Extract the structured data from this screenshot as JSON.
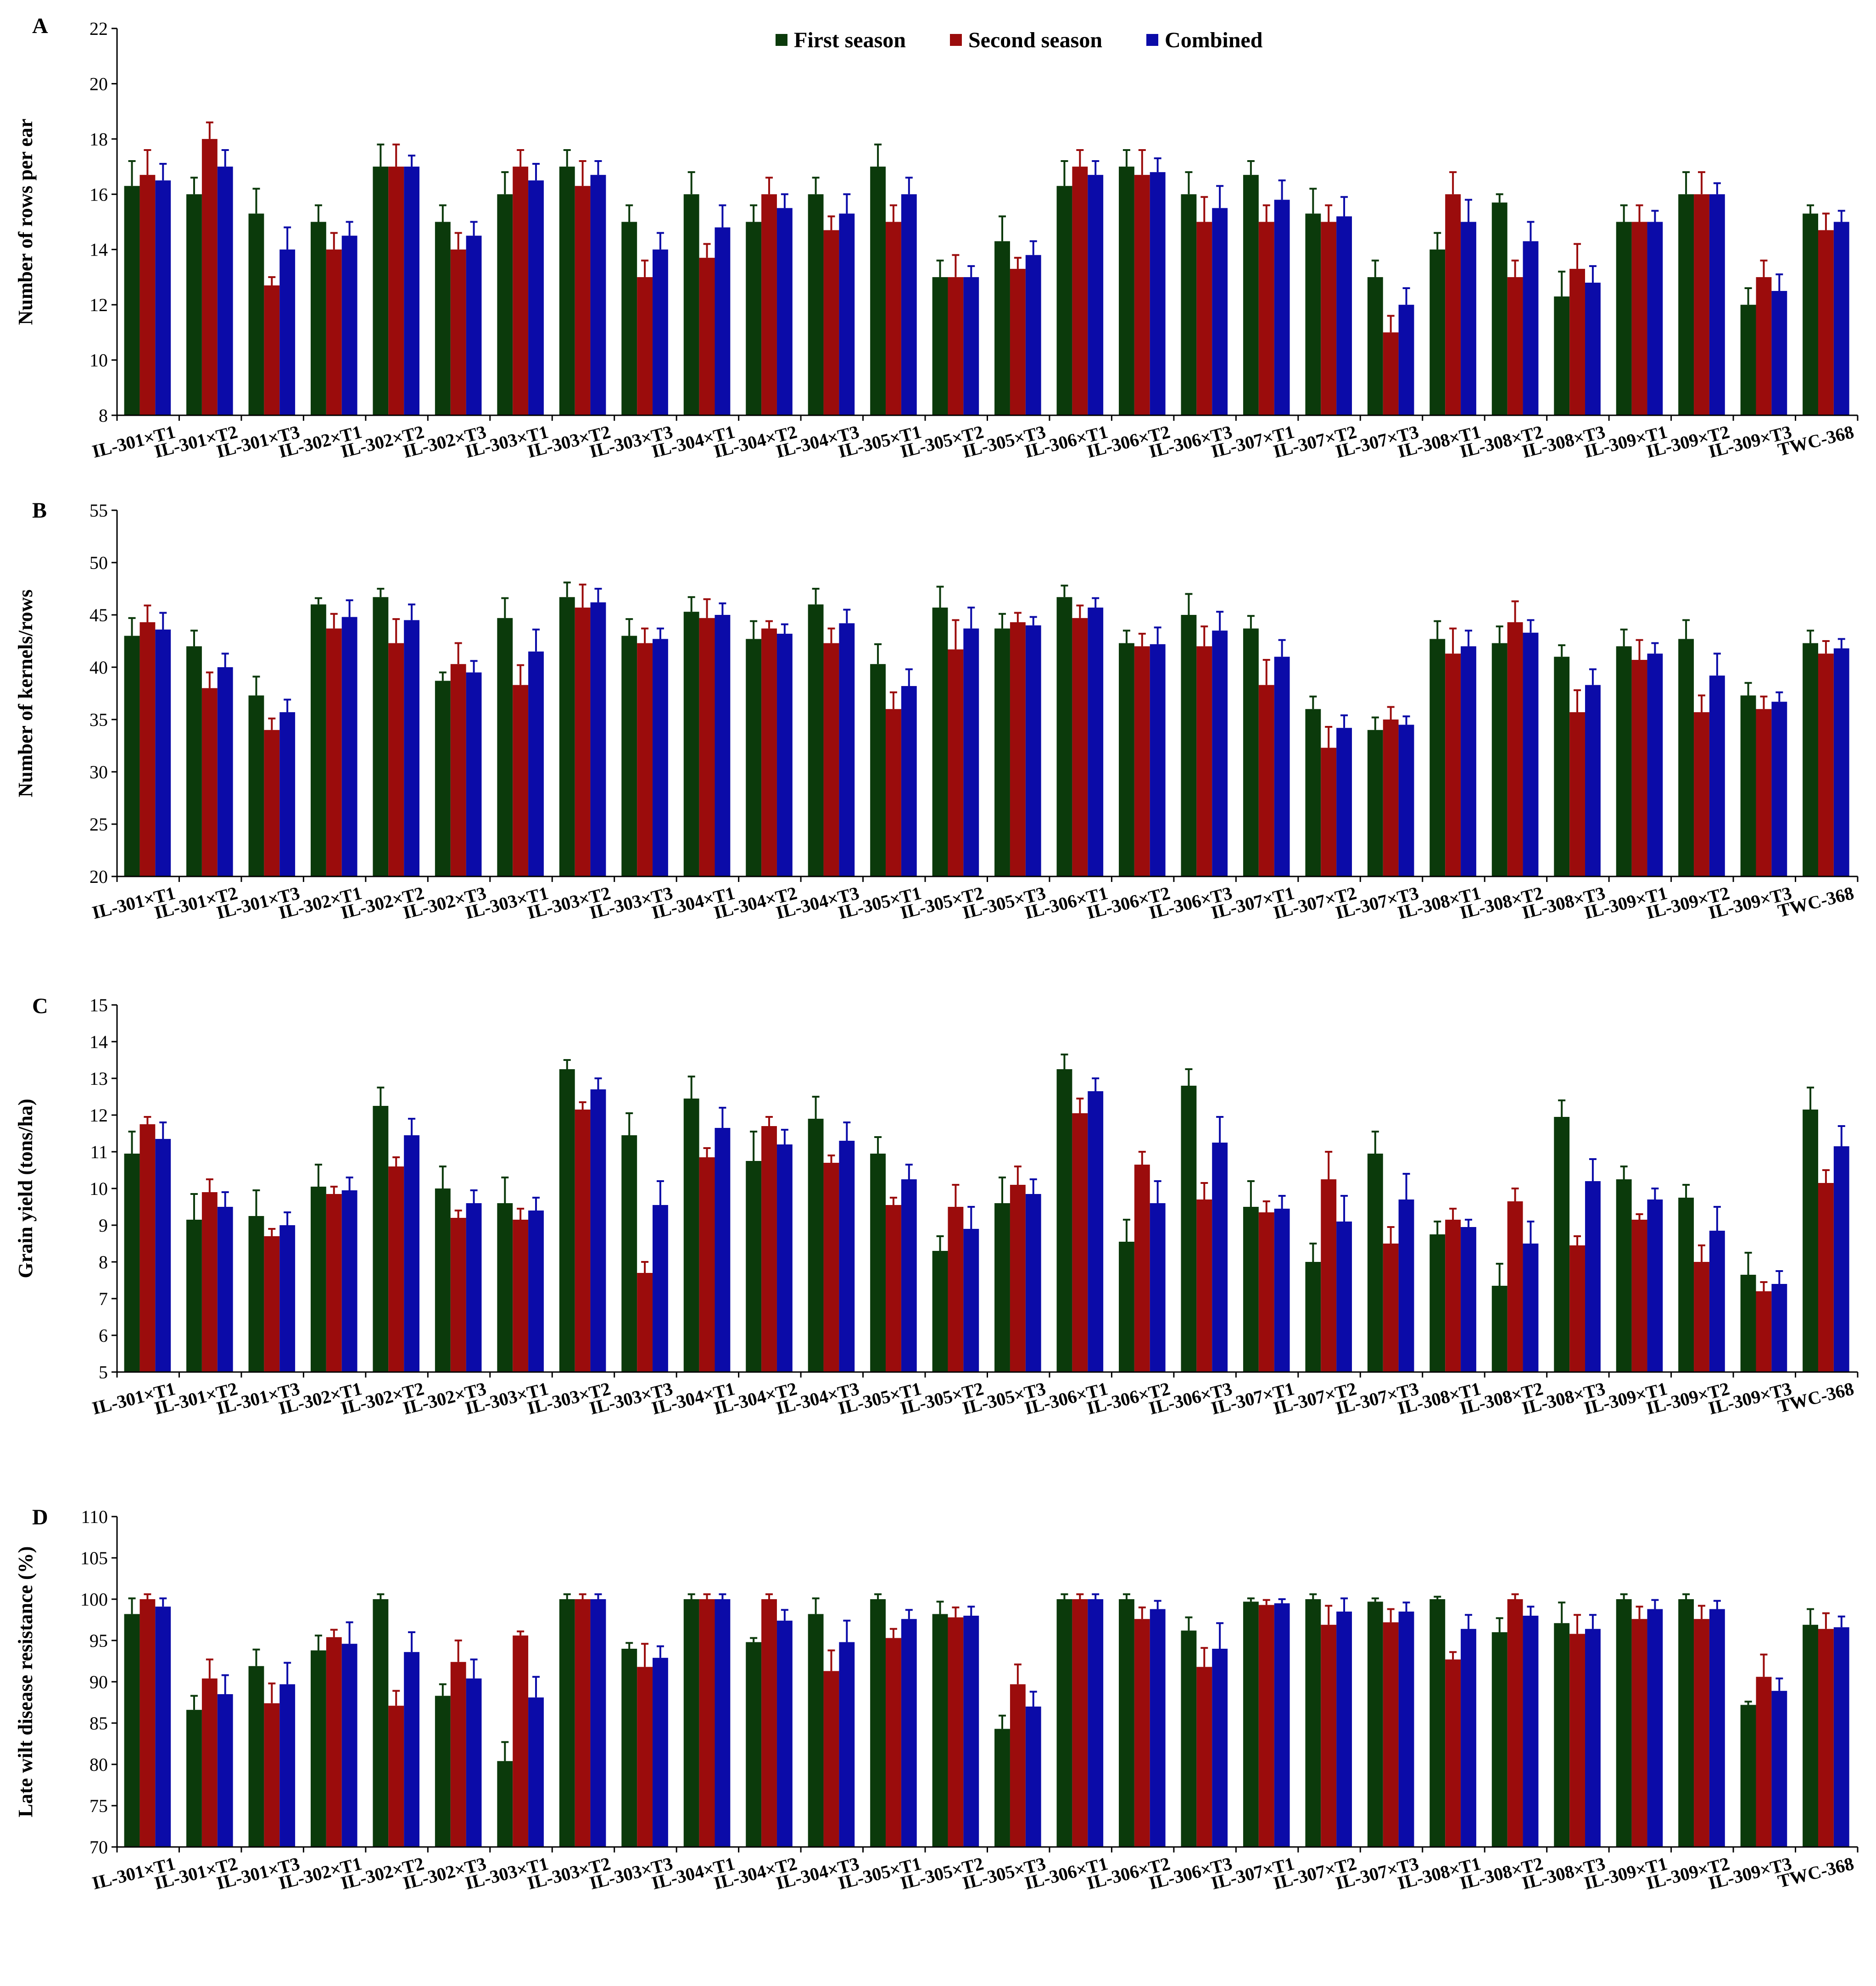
{
  "legend": [
    "First season",
    "Second season",
    "Combined"
  ],
  "colors": {
    "First season": "#0b3a0b",
    "Second season": "#9b0c0c",
    "Combined": "#0b0ba8"
  },
  "chart_data": [
    {
      "panel": "A",
      "type": "bar",
      "ylabel": "Number of rows per ear",
      "ylim": [
        8,
        22
      ],
      "yticks": [
        8,
        10,
        12,
        14,
        16,
        18,
        20,
        22
      ],
      "categories": [
        "IL-301×T1",
        "IL-301×T2",
        "IL-301×T3",
        "IL-302×T1",
        "IL-302×T2",
        "IL-302×T3",
        "IL-303×T1",
        "IL-303×T2",
        "IL-303×T3",
        "IL-304×T1",
        "IL-304×T2",
        "IL-304×T3",
        "IL-305×T1",
        "IL-305×T2",
        "IL-305×T3",
        "IL-306×T1",
        "IL-306×T2",
        "IL-306×T3",
        "IL-307×T1",
        "IL-307×T2",
        "IL-307×T3",
        "IL-308×T1",
        "IL-308×T2",
        "IL-308×T3",
        "IL-309×T1",
        "IL-309×T2",
        "IL-309×T3",
        "TWC-368"
      ],
      "series": [
        {
          "name": "First season",
          "values": [
            16.3,
            16.0,
            15.3,
            15.0,
            17.0,
            15.0,
            16.0,
            17.0,
            15.0,
            16.0,
            15.0,
            16.0,
            17.0,
            13.0,
            14.3,
            16.3,
            17.0,
            16.0,
            16.7,
            15.3,
            13.0,
            14.0,
            15.7,
            12.3,
            15.0,
            16.0,
            12.0,
            15.3
          ],
          "errors": [
            0.9,
            0.6,
            0.9,
            0.6,
            0.8,
            0.6,
            0.8,
            0.6,
            0.6,
            0.8,
            0.6,
            0.6,
            0.8,
            0.6,
            0.9,
            0.9,
            0.6,
            0.8,
            0.5,
            0.9,
            0.6,
            0.6,
            0.3,
            0.9,
            0.6,
            0.8,
            0.6,
            0.3
          ]
        },
        {
          "name": "Second season",
          "values": [
            16.7,
            18.0,
            12.7,
            14.0,
            17.0,
            14.0,
            17.0,
            16.3,
            13.0,
            13.7,
            16.0,
            14.7,
            15.0,
            13.0,
            13.3,
            17.0,
            16.7,
            15.0,
            15.0,
            15.0,
            11.0,
            16.0,
            13.0,
            13.3,
            15.0,
            16.0,
            13.0,
            14.7
          ],
          "errors": [
            0.9,
            0.6,
            0.3,
            0.6,
            0.8,
            0.6,
            0.6,
            0.9,
            0.6,
            0.5,
            0.6,
            0.5,
            0.6,
            0.8,
            0.4,
            0.6,
            0.9,
            0.9,
            0.6,
            0.6,
            0.6,
            0.8,
            0.6,
            0.9,
            0.6,
            0.8,
            0.6,
            0.6
          ]
        },
        {
          "name": "Combined",
          "values": [
            16.5,
            17.0,
            14.0,
            14.5,
            17.0,
            14.5,
            16.5,
            16.7,
            14.0,
            14.8,
            15.5,
            15.3,
            16.0,
            13.0,
            13.8,
            16.7,
            16.8,
            15.5,
            15.8,
            15.2,
            12.0,
            15.0,
            14.3,
            12.8,
            15.0,
            16.0,
            12.5,
            15.0
          ],
          "errors": [
            0.6,
            0.6,
            0.8,
            0.5,
            0.4,
            0.5,
            0.6,
            0.5,
            0.6,
            0.8,
            0.5,
            0.7,
            0.6,
            0.4,
            0.5,
            0.5,
            0.5,
            0.8,
            0.7,
            0.7,
            0.6,
            0.8,
            0.7,
            0.6,
            0.4,
            0.4,
            0.6,
            0.4
          ]
        }
      ]
    },
    {
      "panel": "B",
      "type": "bar",
      "ylabel": "Number of kernels/rows",
      "ylim": [
        20,
        55
      ],
      "yticks": [
        20,
        25,
        30,
        35,
        40,
        45,
        50,
        55
      ],
      "categories": [
        "IL-301×T1",
        "IL-301×T2",
        "IL-301×T3",
        "IL-302×T1",
        "IL-302×T2",
        "IL-302×T3",
        "IL-303×T1",
        "IL-303×T2",
        "IL-303×T3",
        "IL-304×T1",
        "IL-304×T2",
        "IL-304×T3",
        "IL-305×T1",
        "IL-305×T2",
        "IL-305×T3",
        "IL-306×T1",
        "IL-306×T2",
        "IL-306×T3",
        "IL-307×T1",
        "IL-307×T2",
        "IL-307×T3",
        "IL-308×T1",
        "IL-308×T2",
        "IL-308×T3",
        "IL-309×T1",
        "IL-309×T2",
        "IL-309×T3",
        "TWC-368"
      ],
      "series": [
        {
          "name": "First season",
          "values": [
            43.0,
            42.0,
            37.3,
            46.0,
            46.7,
            38.7,
            44.7,
            46.7,
            43.0,
            45.3,
            42.7,
            46.0,
            40.3,
            45.7,
            43.7,
            46.7,
            42.3,
            45.0,
            43.7,
            36.0,
            34.0,
            42.7,
            42.3,
            41.0,
            42.0,
            42.7,
            37.3,
            42.3
          ],
          "errors": [
            1.7,
            1.5,
            1.8,
            0.6,
            0.8,
            0.8,
            1.9,
            1.4,
            1.6,
            1.4,
            1.7,
            1.5,
            1.9,
            2.0,
            1.4,
            1.1,
            1.2,
            2.0,
            1.2,
            1.2,
            1.2,
            1.7,
            1.6,
            1.1,
            1.6,
            1.8,
            1.2,
            1.2
          ]
        },
        {
          "name": "Second season",
          "values": [
            44.3,
            38.0,
            34.0,
            43.7,
            42.3,
            40.3,
            38.3,
            45.7,
            42.3,
            44.7,
            43.7,
            42.3,
            36.0,
            41.7,
            44.3,
            44.7,
            42.0,
            42.0,
            38.3,
            32.3,
            35.0,
            41.3,
            44.3,
            35.7,
            40.7,
            35.7,
            36.0,
            41.3
          ],
          "errors": [
            1.6,
            1.5,
            1.1,
            1.4,
            2.3,
            2.0,
            1.9,
            2.2,
            1.4,
            1.8,
            0.7,
            1.4,
            1.6,
            2.8,
            0.9,
            1.2,
            1.2,
            1.9,
            2.4,
            2.0,
            1.2,
            2.4,
            2.0,
            2.1,
            1.9,
            1.6,
            1.2,
            1.2
          ]
        },
        {
          "name": "Combined",
          "values": [
            43.6,
            40.0,
            35.7,
            44.8,
            44.5,
            39.5,
            41.5,
            46.2,
            42.7,
            45.0,
            43.2,
            44.2,
            38.2,
            43.7,
            44.0,
            45.7,
            42.2,
            43.5,
            41.0,
            34.2,
            34.5,
            42.0,
            43.3,
            38.3,
            41.3,
            39.2,
            36.7,
            41.8
          ],
          "errors": [
            1.6,
            1.3,
            1.2,
            1.6,
            1.5,
            1.1,
            2.1,
            1.3,
            1.0,
            1.1,
            0.9,
            1.3,
            1.6,
            2.0,
            0.8,
            0.9,
            1.6,
            1.8,
            1.6,
            1.2,
            0.8,
            1.5,
            1.2,
            1.5,
            1.0,
            2.1,
            0.9,
            0.9
          ]
        }
      ]
    },
    {
      "panel": "C",
      "type": "bar",
      "ylabel": "Grain yield (tons/ha)",
      "ylim": [
        5,
        15
      ],
      "yticks": [
        5,
        6,
        7,
        8,
        9,
        10,
        11,
        12,
        13,
        14,
        15
      ],
      "categories": [
        "IL-301×T1",
        "IL-301×T2",
        "IL-301×T3",
        "IL-302×T1",
        "IL-302×T2",
        "IL-302×T3",
        "IL-303×T1",
        "IL-303×T2",
        "IL-303×T3",
        "IL-304×T1",
        "IL-304×T2",
        "IL-304×T3",
        "IL-305×T1",
        "IL-305×T2",
        "IL-305×T3",
        "IL-306×T1",
        "IL-306×T2",
        "IL-306×T3",
        "IL-307×T1",
        "IL-307×T2",
        "IL-307×T3",
        "IL-308×T1",
        "IL-308×T2",
        "IL-308×T3",
        "IL-309×T1",
        "IL-309×T2",
        "IL-309×T3",
        "TWC-368"
      ],
      "series": [
        {
          "name": "First season",
          "values": [
            10.95,
            9.15,
            9.25,
            10.05,
            12.25,
            10.0,
            9.6,
            13.25,
            11.45,
            12.45,
            10.75,
            11.9,
            10.95,
            8.3,
            9.6,
            13.25,
            8.55,
            12.8,
            9.5,
            8.0,
            10.95,
            8.75,
            7.35,
            11.95,
            10.25,
            9.75,
            7.65,
            12.15
          ],
          "errors": [
            0.6,
            0.7,
            0.7,
            0.6,
            0.5,
            0.6,
            0.7,
            0.25,
            0.6,
            0.6,
            0.8,
            0.6,
            0.45,
            0.4,
            0.7,
            0.4,
            0.6,
            0.45,
            0.7,
            0.5,
            0.6,
            0.35,
            0.6,
            0.45,
            0.35,
            0.35,
            0.6,
            0.6
          ]
        },
        {
          "name": "Second season",
          "values": [
            11.75,
            9.9,
            8.7,
            9.85,
            10.6,
            9.2,
            9.15,
            12.15,
            7.7,
            10.85,
            11.7,
            10.7,
            9.55,
            9.5,
            10.1,
            12.05,
            10.65,
            9.7,
            9.35,
            10.25,
            8.5,
            9.15,
            9.65,
            8.45,
            9.15,
            8.0,
            7.2,
            10.15
          ],
          "errors": [
            0.2,
            0.35,
            0.2,
            0.2,
            0.25,
            0.2,
            0.3,
            0.2,
            0.3,
            0.25,
            0.25,
            0.2,
            0.2,
            0.6,
            0.5,
            0.4,
            0.35,
            0.45,
            0.3,
            0.75,
            0.45,
            0.3,
            0.35,
            0.25,
            0.15,
            0.45,
            0.25,
            0.35
          ]
        },
        {
          "name": "Combined",
          "values": [
            11.35,
            9.5,
            9.0,
            9.95,
            11.45,
            9.6,
            9.4,
            12.7,
            9.55,
            11.65,
            11.2,
            11.3,
            10.25,
            8.9,
            9.85,
            12.65,
            9.6,
            11.25,
            9.45,
            9.1,
            9.7,
            8.95,
            8.5,
            10.2,
            9.7,
            8.85,
            7.4,
            11.15
          ],
          "errors": [
            0.45,
            0.4,
            0.35,
            0.35,
            0.45,
            0.35,
            0.35,
            0.3,
            0.65,
            0.55,
            0.4,
            0.5,
            0.4,
            0.6,
            0.4,
            0.35,
            0.6,
            0.7,
            0.35,
            0.7,
            0.7,
            0.2,
            0.6,
            0.6,
            0.3,
            0.65,
            0.35,
            0.55
          ]
        }
      ]
    },
    {
      "panel": "D",
      "type": "bar",
      "ylabel": "Late wilt disease resistance (%)",
      "ylim": [
        70,
        110
      ],
      "yticks": [
        70,
        75,
        80,
        85,
        90,
        95,
        100,
        105,
        110
      ],
      "categories": [
        "IL-301×T1",
        "IL-301×T2",
        "IL-301×T3",
        "IL-302×T1",
        "IL-302×T2",
        "IL-302×T3",
        "IL-303×T1",
        "IL-303×T2",
        "IL-303×T3",
        "IL-304×T1",
        "IL-304×T2",
        "IL-304×T3",
        "IL-305×T1",
        "IL-305×T2",
        "IL-305×T3",
        "IL-306×T1",
        "IL-306×T2",
        "IL-306×T3",
        "IL-307×T1",
        "IL-307×T2",
        "IL-307×T3",
        "IL-308×T1",
        "IL-308×T2",
        "IL-308×T3",
        "IL-309×T1",
        "IL-309×T2",
        "IL-309×T3",
        "TWC-368"
      ],
      "series": [
        {
          "name": "First season",
          "values": [
            98.2,
            86.6,
            91.9,
            93.8,
            100.0,
            88.3,
            80.4,
            100.0,
            94.0,
            100.0,
            94.8,
            98.2,
            100.0,
            98.2,
            84.3,
            100.0,
            100.0,
            96.2,
            99.7,
            100.0,
            99.7,
            100.0,
            96.0,
            97.1,
            100.0,
            100.0,
            87.2,
            96.9
          ],
          "errors": [
            1.9,
            1.7,
            2.0,
            1.8,
            0.6,
            1.4,
            2.3,
            0.6,
            0.7,
            0.6,
            0.5,
            1.9,
            0.6,
            1.5,
            1.6,
            0.6,
            0.6,
            1.6,
            0.4,
            0.6,
            0.4,
            0.3,
            1.7,
            2.5,
            0.6,
            0.6,
            0.4,
            1.9
          ]
        },
        {
          "name": "Second season",
          "values": [
            100.0,
            90.4,
            87.4,
            95.4,
            87.1,
            92.4,
            95.6,
            100.0,
            91.8,
            100.0,
            100.0,
            91.3,
            95.3,
            97.8,
            89.7,
            100.0,
            97.6,
            91.8,
            99.3,
            96.9,
            97.2,
            92.7,
            100.0,
            95.8,
            97.6,
            97.6,
            90.6,
            96.4
          ],
          "errors": [
            0.6,
            2.3,
            2.4,
            0.9,
            1.8,
            2.6,
            0.5,
            0.6,
            2.8,
            0.6,
            0.6,
            2.5,
            1.1,
            1.2,
            2.4,
            0.6,
            1.4,
            2.3,
            0.6,
            2.3,
            1.6,
            0.9,
            0.6,
            2.3,
            1.5,
            1.6,
            2.7,
            1.9
          ]
        },
        {
          "name": "Combined",
          "values": [
            99.1,
            88.5,
            89.7,
            94.6,
            93.6,
            90.4,
            88.1,
            100.0,
            92.9,
            100.0,
            97.4,
            94.8,
            97.6,
            98.0,
            87.0,
            100.0,
            98.8,
            94.0,
            99.5,
            98.5,
            98.5,
            96.4,
            98.0,
            96.4,
            98.8,
            98.8,
            88.9,
            96.6
          ],
          "errors": [
            1.0,
            2.3,
            2.6,
            2.6,
            2.4,
            2.3,
            2.5,
            0.6,
            1.4,
            0.6,
            1.3,
            2.6,
            1.1,
            1.1,
            1.8,
            0.6,
            1.0,
            3.1,
            0.5,
            1.6,
            1.1,
            1.7,
            1.1,
            1.7,
            1.1,
            1.0,
            1.5,
            1.3
          ]
        }
      ]
    }
  ]
}
